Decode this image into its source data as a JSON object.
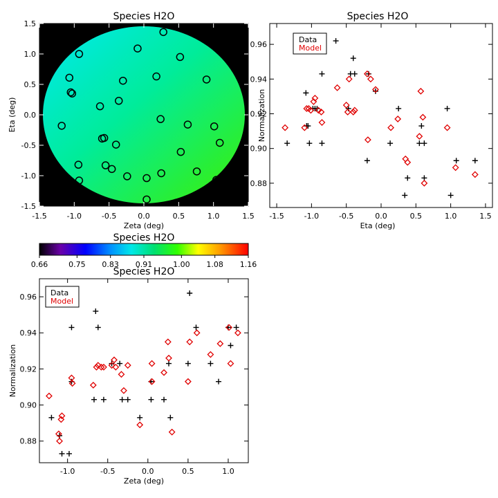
{
  "colors": {
    "data": "#000000",
    "model": "#e00000",
    "background": "#000000",
    "circle": "#000000"
  },
  "panels": {
    "map": {
      "title": "Species H2O",
      "xlabel": "Zeta (deg)",
      "ylabel": "Eta (deg)",
      "xticks": [
        "-1.5",
        "-1.0",
        "-0.5",
        "0.0",
        "0.5",
        "1.0",
        "1.5"
      ],
      "yticks": [
        "-1.5",
        "-1.0",
        "-0.5",
        "0.0",
        "0.5",
        "1.0",
        "1.5"
      ]
    },
    "colorbar": {
      "title": "Species H2O",
      "ticks": [
        "0.66",
        "0.75",
        "0.83",
        "0.91",
        "1.00",
        "1.08",
        "1.16"
      ]
    },
    "eta": {
      "title": "Species H2O",
      "xlabel": "Eta (deg)",
      "ylabel": "Normalization",
      "xticks": [
        "-1.5",
        "-1.0",
        "-0.5",
        "0.0",
        "0.5",
        "1.0",
        "1.5"
      ],
      "yticks": [
        "0.88",
        "0.90",
        "0.92",
        "0.94",
        "0.96"
      ],
      "legend": {
        "data": "Data",
        "model": "Model"
      }
    },
    "zeta": {
      "title": "Species H2O",
      "xlabel": "Zeta (deg)",
      "ylabel": "Normalization",
      "xticks": [
        "-1.0",
        "-0.5",
        "0.0",
        "0.5",
        "1.0"
      ],
      "yticks": [
        "0.88",
        "0.90",
        "0.92",
        "0.94",
        "0.96"
      ],
      "legend": {
        "data": "Data",
        "model": "Model"
      }
    }
  },
  "chart_data": [
    {
      "type": "heatmap",
      "title": "Species H2O",
      "xlabel": "Zeta (deg)",
      "ylabel": "Eta (deg)",
      "xlim": [
        -1.5,
        1.5
      ],
      "ylim": [
        -1.5,
        1.5
      ],
      "colorbar": {
        "range": [
          0.66,
          1.16
        ],
        "ticks": [
          0.66,
          0.75,
          0.83,
          0.91,
          1.0,
          1.08,
          1.16
        ]
      },
      "disk_radius": 1.45,
      "apertures": [
        {
          "x": 0.28,
          "y": 1.36
        },
        {
          "x": -0.09,
          "y": 1.09
        },
        {
          "x": -0.93,
          "y": 1.0
        },
        {
          "x": 0.52,
          "y": 0.95
        },
        {
          "x": -1.07,
          "y": 0.61
        },
        {
          "x": 0.18,
          "y": 0.63
        },
        {
          "x": -0.3,
          "y": 0.56
        },
        {
          "x": 0.9,
          "y": 0.58
        },
        {
          "x": -1.05,
          "y": 0.37
        },
        {
          "x": -1.03,
          "y": 0.35
        },
        {
          "x": -0.63,
          "y": 0.14
        },
        {
          "x": -0.36,
          "y": 0.23
        },
        {
          "x": 0.24,
          "y": -0.07
        },
        {
          "x": 0.63,
          "y": -0.16
        },
        {
          "x": 1.01,
          "y": -0.19
        },
        {
          "x": -1.18,
          "y": -0.18
        },
        {
          "x": -0.6,
          "y": -0.39
        },
        {
          "x": -0.57,
          "y": -0.38
        },
        {
          "x": -0.4,
          "y": -0.49
        },
        {
          "x": 1.09,
          "y": -0.46
        },
        {
          "x": 0.53,
          "y": -0.61
        },
        {
          "x": -0.94,
          "y": -0.82
        },
        {
          "x": -0.55,
          "y": -0.83
        },
        {
          "x": -0.46,
          "y": -0.89
        },
        {
          "x": 0.25,
          "y": -0.96
        },
        {
          "x": 0.76,
          "y": -0.93
        },
        {
          "x": -0.24,
          "y": -1.01
        },
        {
          "x": 0.04,
          "y": -1.04
        },
        {
          "x": -0.93,
          "y": -1.08
        },
        {
          "x": 1.04,
          "y": -1.07
        },
        {
          "x": 0.04,
          "y": -1.39
        }
      ]
    },
    {
      "type": "scatter",
      "title": "Species H2O",
      "xlabel": "Eta (deg)",
      "ylabel": "Normalization",
      "xlim": [
        -1.6,
        1.6
      ],
      "ylim": [
        0.866,
        0.972
      ],
      "legend": "top-left",
      "series": [
        {
          "name": "Data",
          "marker": "plus",
          "points": [
            [
              -1.35,
              0.903
            ],
            [
              -1.08,
              0.932
            ],
            [
              -1.07,
              0.913
            ],
            [
              -1.05,
              0.913
            ],
            [
              -1.03,
              0.903
            ],
            [
              -0.98,
              0.923
            ],
            [
              -0.95,
              0.923
            ],
            [
              -0.92,
              0.923
            ],
            [
              -0.85,
              0.943
            ],
            [
              -0.85,
              0.903
            ],
            [
              -0.65,
              0.962
            ],
            [
              -0.47,
              0.923
            ],
            [
              -0.44,
              0.943
            ],
            [
              -0.4,
              0.952
            ],
            [
              -0.38,
              0.943
            ],
            [
              -0.2,
              0.893
            ],
            [
              -0.18,
              0.943
            ],
            [
              -0.08,
              0.933
            ],
            [
              0.13,
              0.903
            ],
            [
              0.25,
              0.923
            ],
            [
              0.34,
              0.873
            ],
            [
              0.38,
              0.883
            ],
            [
              0.55,
              0.903
            ],
            [
              0.58,
              0.913
            ],
            [
              0.62,
              0.883
            ],
            [
              0.62,
              0.903
            ],
            [
              0.95,
              0.923
            ],
            [
              1.0,
              0.873
            ],
            [
              1.08,
              0.893
            ],
            [
              1.35,
              0.893
            ]
          ]
        },
        {
          "name": "Model",
          "marker": "diamond",
          "points": [
            [
              -1.38,
              0.912
            ],
            [
              -1.1,
              0.912
            ],
            [
              -1.07,
              0.923
            ],
            [
              -1.04,
              0.923
            ],
            [
              -1.01,
              0.922
            ],
            [
              -0.97,
              0.927
            ],
            [
              -0.95,
              0.929
            ],
            [
              -0.9,
              0.922
            ],
            [
              -0.86,
              0.921
            ],
            [
              -0.85,
              0.915
            ],
            [
              -0.63,
              0.935
            ],
            [
              -0.5,
              0.925
            ],
            [
              -0.48,
              0.921
            ],
            [
              -0.46,
              0.94
            ],
            [
              -0.4,
              0.921
            ],
            [
              -0.38,
              0.922
            ],
            [
              -0.2,
              0.943
            ],
            [
              -0.19,
              0.905
            ],
            [
              -0.15,
              0.94
            ],
            [
              -0.08,
              0.934
            ],
            [
              0.14,
              0.912
            ],
            [
              0.24,
              0.917
            ],
            [
              0.35,
              0.894
            ],
            [
              0.38,
              0.892
            ],
            [
              0.55,
              0.907
            ],
            [
              0.57,
              0.933
            ],
            [
              0.6,
              0.918
            ],
            [
              0.62,
              0.88
            ],
            [
              0.95,
              0.912
            ],
            [
              1.07,
              0.889
            ],
            [
              1.35,
              0.885
            ]
          ]
        }
      ]
    },
    {
      "type": "scatter",
      "title": "Species H2O",
      "xlabel": "Zeta (deg)",
      "ylabel": "Normalization",
      "xlim": [
        -1.35,
        1.25
      ],
      "ylim": [
        0.868,
        0.97
      ],
      "legend": "top-left",
      "series": [
        {
          "name": "Data",
          "marker": "plus",
          "points": [
            [
              -1.2,
              0.893
            ],
            [
              -1.1,
              0.883
            ],
            [
              -1.07,
              0.873
            ],
            [
              -0.98,
              0.873
            ],
            [
              -0.95,
              0.943
            ],
            [
              -0.95,
              0.913
            ],
            [
              -0.67,
              0.903
            ],
            [
              -0.65,
              0.952
            ],
            [
              -0.62,
              0.943
            ],
            [
              -0.55,
              0.903
            ],
            [
              -0.45,
              0.923
            ],
            [
              -0.35,
              0.923
            ],
            [
              -0.32,
              0.903
            ],
            [
              -0.25,
              0.903
            ],
            [
              -0.1,
              0.893
            ],
            [
              0.04,
              0.903
            ],
            [
              0.04,
              0.913
            ],
            [
              0.2,
              0.903
            ],
            [
              0.26,
              0.923
            ],
            [
              0.28,
              0.893
            ],
            [
              0.5,
              0.923
            ],
            [
              0.52,
              0.962
            ],
            [
              0.6,
              0.943
            ],
            [
              0.78,
              0.923
            ],
            [
              0.88,
              0.913
            ],
            [
              1.0,
              0.943
            ],
            [
              1.03,
              0.933
            ],
            [
              1.1,
              0.943
            ]
          ]
        },
        {
          "name": "Model",
          "marker": "diamond",
          "points": [
            [
              -1.23,
              0.905
            ],
            [
              -1.11,
              0.884
            ],
            [
              -1.1,
              0.88
            ],
            [
              -1.08,
              0.892
            ],
            [
              -1.07,
              0.894
            ],
            [
              -0.95,
              0.915
            ],
            [
              -0.94,
              0.912
            ],
            [
              -0.68,
              0.911
            ],
            [
              -0.64,
              0.921
            ],
            [
              -0.62,
              0.922
            ],
            [
              -0.58,
              0.921
            ],
            [
              -0.55,
              0.921
            ],
            [
              -0.45,
              0.922
            ],
            [
              -0.42,
              0.925
            ],
            [
              -0.4,
              0.921
            ],
            [
              -0.33,
              0.917
            ],
            [
              -0.3,
              0.908
            ],
            [
              -0.25,
              0.922
            ],
            [
              -0.1,
              0.889
            ],
            [
              0.05,
              0.913
            ],
            [
              0.05,
              0.923
            ],
            [
              0.2,
              0.918
            ],
            [
              0.25,
              0.935
            ],
            [
              0.26,
              0.926
            ],
            [
              0.3,
              0.885
            ],
            [
              0.5,
              0.913
            ],
            [
              0.52,
              0.935
            ],
            [
              0.61,
              0.94
            ],
            [
              0.78,
              0.928
            ],
            [
              0.9,
              0.934
            ],
            [
              1.01,
              0.943
            ],
            [
              1.03,
              0.923
            ],
            [
              1.12,
              0.94
            ]
          ]
        }
      ]
    }
  ]
}
